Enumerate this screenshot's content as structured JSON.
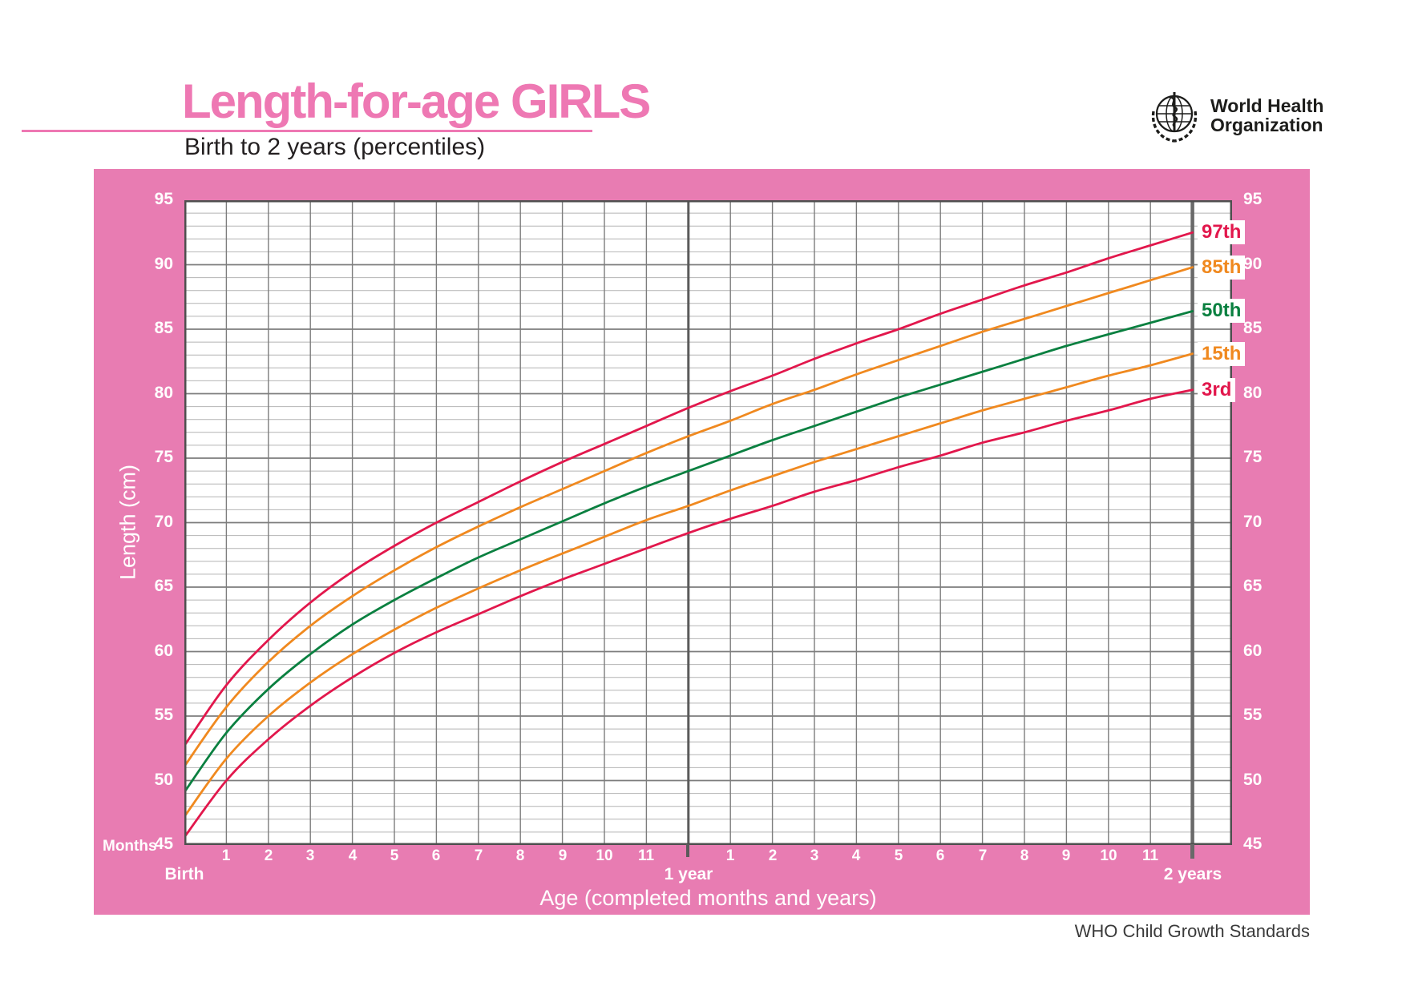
{
  "header": {
    "title": "Length-for-age GIRLS",
    "subtitle": "Birth to 2 years (percentiles)",
    "logo": {
      "line1": "World Health",
      "line2": "Organization"
    }
  },
  "footer": {
    "credit": "WHO Child Growth Standards"
  },
  "colors": {
    "title_pink": "#ee78b3",
    "panel_pink": "#e87cb2",
    "percentile_red": "#e2174c",
    "percentile_orange": "#f0891f",
    "percentile_green": "#0a8040",
    "grid_minor": "#b4b4b4",
    "grid_major": "#7d7d7d",
    "grid_frame": "#4f4f4f",
    "year_line": "#5a5a5a",
    "two_year_line": "#696969",
    "axis_text": "#ffffff",
    "dark_text": "#231f20"
  },
  "axes": {
    "y_label": "Length (cm)",
    "x_label": "Age (completed months and years)",
    "months_label": "Months",
    "y_ticks": [
      95,
      90,
      85,
      80,
      75,
      70,
      65,
      60,
      55,
      50,
      45
    ],
    "month_tick_labels": [
      "1",
      "2",
      "3",
      "4",
      "5",
      "6",
      "7",
      "8",
      "9",
      "10",
      "11"
    ],
    "x_anchor_labels": {
      "birth": "Birth",
      "year1": "1 year",
      "year2": "2 years"
    },
    "ylim": [
      45,
      95
    ],
    "xlim_months": [
      0,
      24
    ]
  },
  "chart_data": {
    "type": "line",
    "title": "Length-for-age GIRLS, Birth to 2 years (percentiles)",
    "xlabel": "Age (completed months and years)",
    "ylabel": "Length (cm)",
    "ylim": [
      45,
      95
    ],
    "x_months": [
      0,
      1,
      2,
      3,
      4,
      5,
      6,
      7,
      8,
      9,
      10,
      11,
      12,
      13,
      14,
      15,
      16,
      17,
      18,
      19,
      20,
      21,
      22,
      23,
      24
    ],
    "grid": "horizontal minor every 1 cm, major every 5 cm; vertical every month",
    "legend_position": "right-end-labels",
    "series": [
      {
        "name": "97th",
        "color": "#e2174c",
        "values": [
          52.7,
          57.4,
          60.9,
          63.8,
          66.2,
          68.2,
          70.0,
          71.6,
          73.2,
          74.7,
          76.1,
          77.5,
          78.9,
          80.2,
          81.4,
          82.7,
          83.9,
          85.0,
          86.2,
          87.3,
          88.4,
          89.4,
          90.5,
          91.5,
          92.5
        ]
      },
      {
        "name": "85th",
        "color": "#f0891f",
        "values": [
          51.1,
          55.7,
          59.2,
          62.0,
          64.3,
          66.3,
          68.1,
          69.7,
          71.2,
          72.6,
          74.0,
          75.4,
          76.7,
          77.9,
          79.2,
          80.3,
          81.5,
          82.6,
          83.7,
          84.8,
          85.8,
          86.8,
          87.8,
          88.8,
          89.8
        ]
      },
      {
        "name": "50th",
        "color": "#0a8040",
        "values": [
          49.1,
          53.7,
          57.1,
          59.8,
          62.1,
          64.0,
          65.7,
          67.3,
          68.7,
          70.1,
          71.5,
          72.8,
          74.0,
          75.2,
          76.4,
          77.5,
          78.6,
          79.7,
          80.7,
          81.7,
          82.7,
          83.7,
          84.6,
          85.5,
          86.4
        ]
      },
      {
        "name": "15th",
        "color": "#f0891f",
        "values": [
          47.2,
          51.7,
          55.0,
          57.6,
          59.8,
          61.7,
          63.4,
          64.9,
          66.3,
          67.6,
          68.9,
          70.2,
          71.3,
          72.5,
          73.6,
          74.7,
          75.7,
          76.7,
          77.7,
          78.7,
          79.6,
          80.5,
          81.4,
          82.2,
          83.1
        ]
      },
      {
        "name": "3rd",
        "color": "#e2174c",
        "values": [
          45.6,
          50.0,
          53.2,
          55.8,
          58.0,
          59.9,
          61.5,
          62.9,
          64.3,
          65.6,
          66.8,
          68.0,
          69.2,
          70.3,
          71.3,
          72.4,
          73.3,
          74.3,
          75.2,
          76.2,
          77.0,
          77.9,
          78.7,
          79.6,
          80.3
        ]
      }
    ]
  }
}
